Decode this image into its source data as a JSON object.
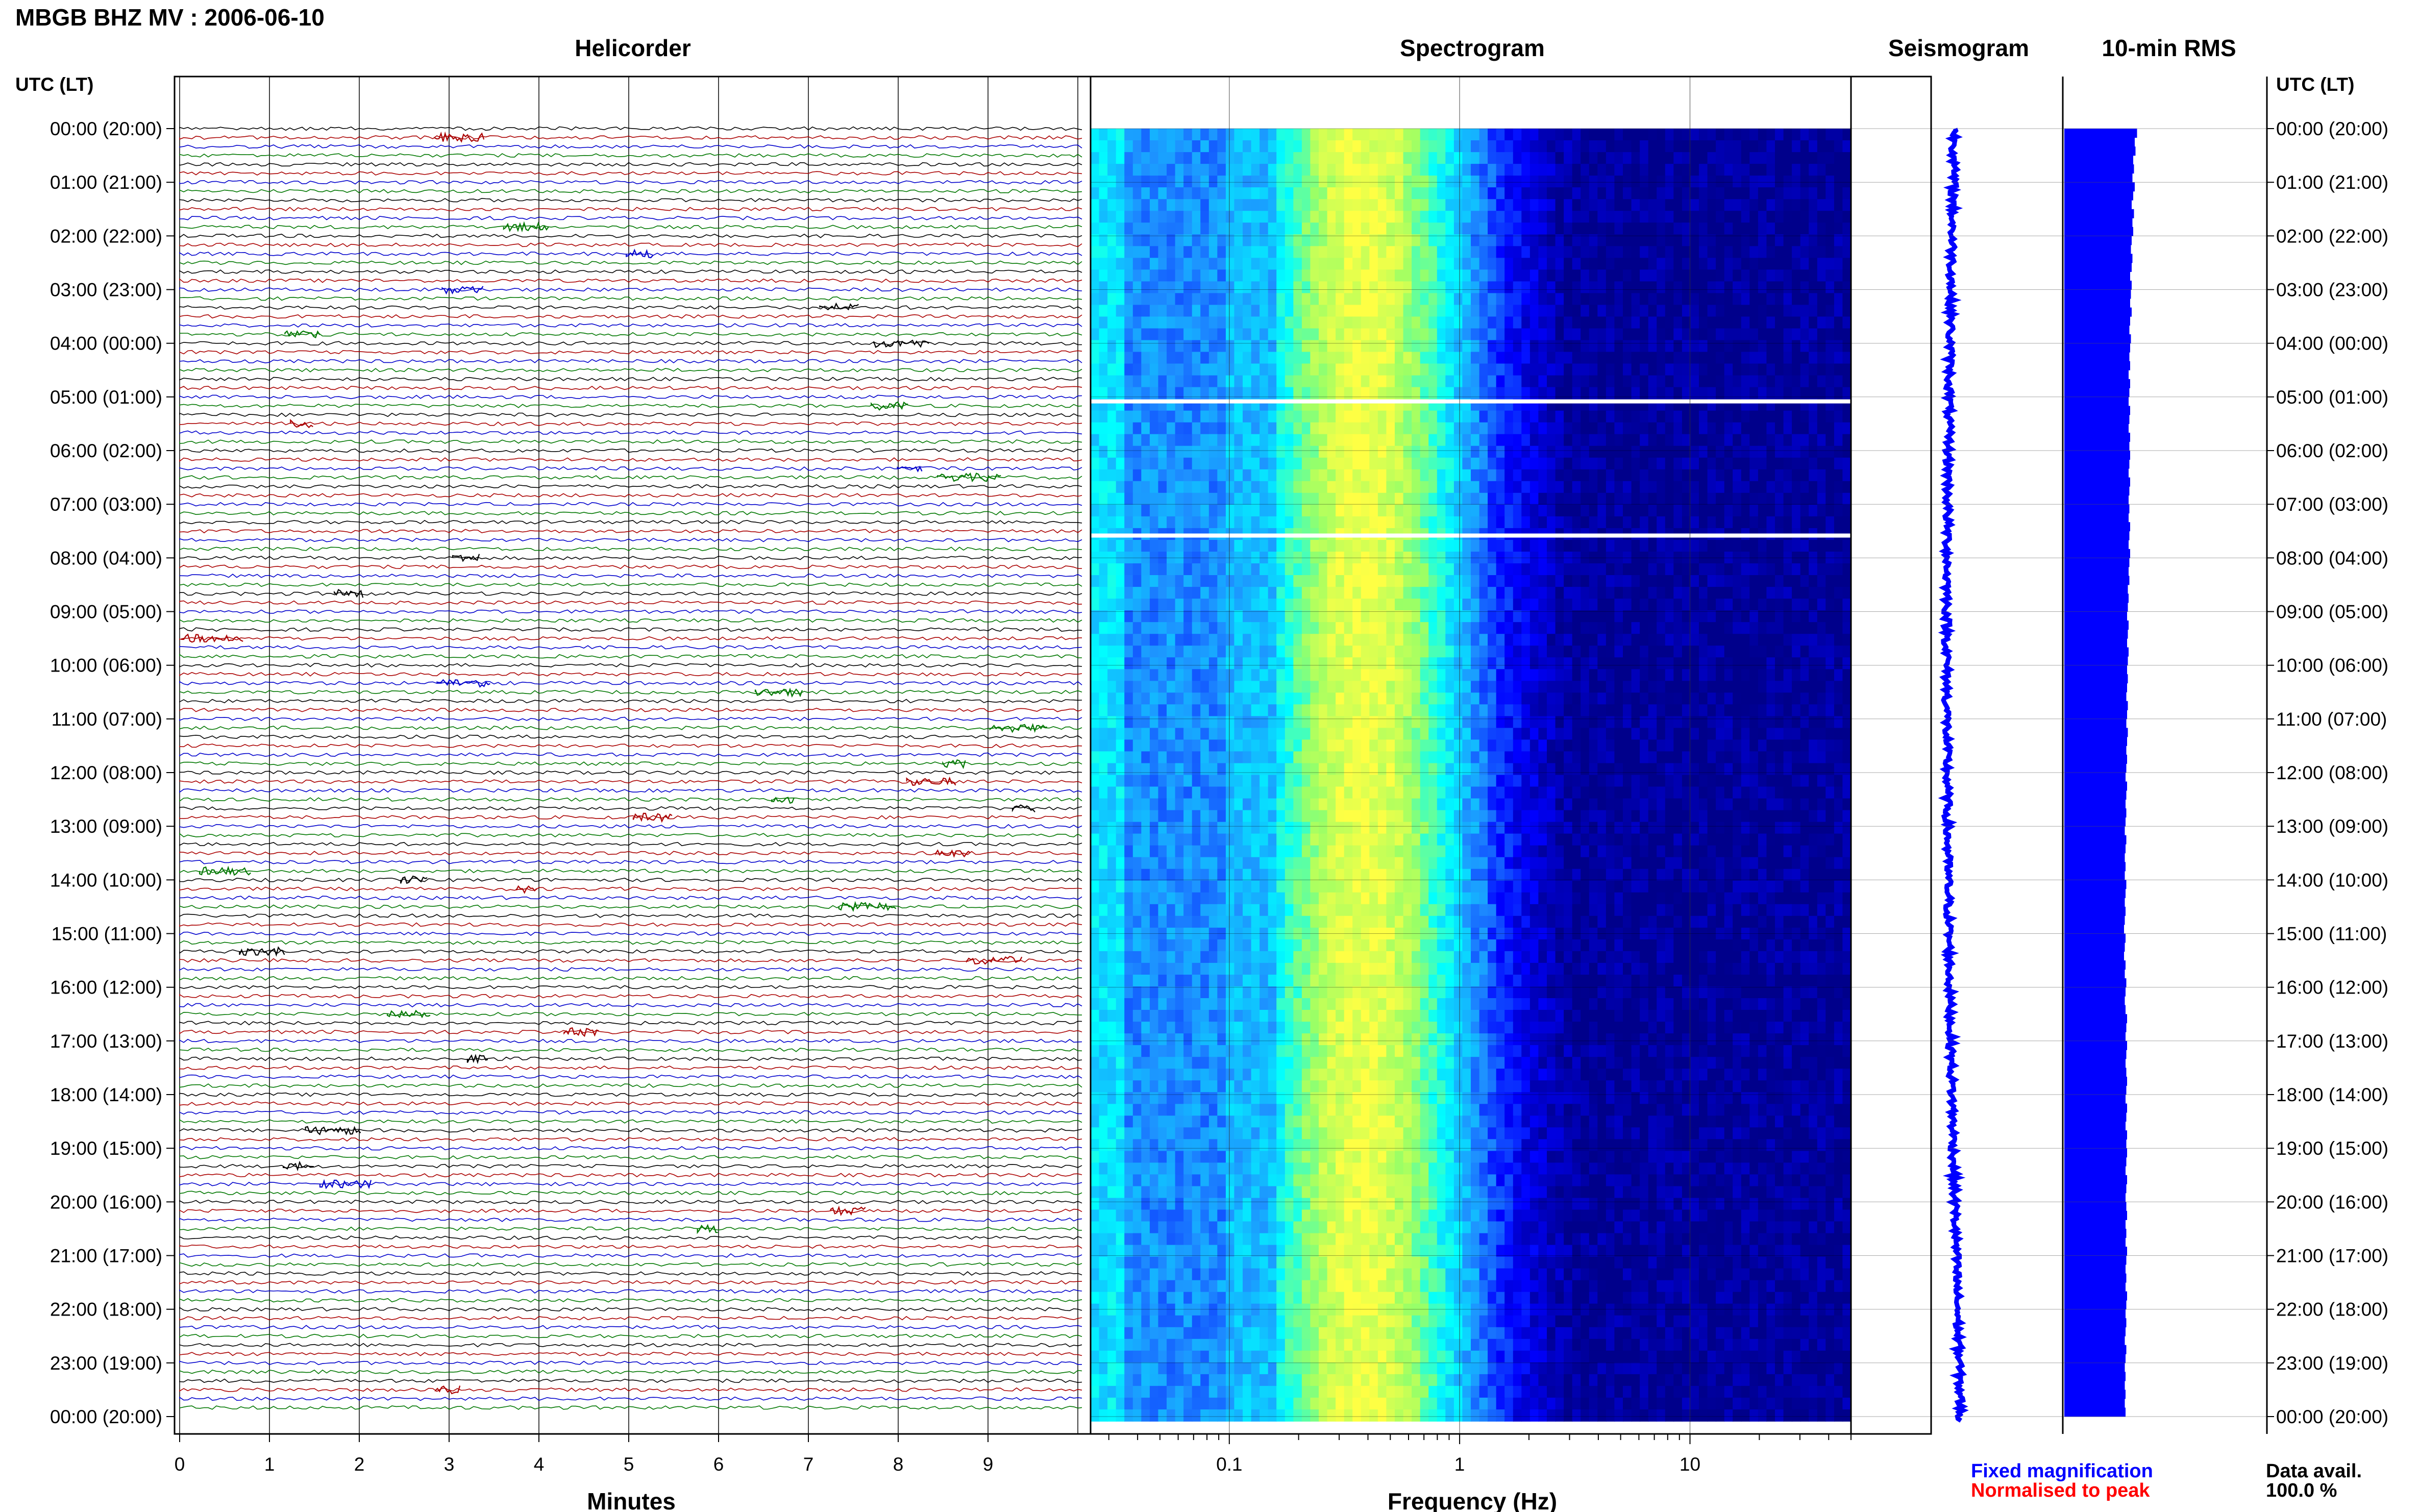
{
  "header": {
    "title": "MBGB BHZ MV : 2006-06-10"
  },
  "panels": {
    "helicorder": "Helicorder",
    "spectrogram": "Spectrogram",
    "seismogram": "Seismogram",
    "rms": "10-min RMS"
  },
  "axes": {
    "time_heading_left": "UTC (LT)",
    "time_heading_right": "UTC (LT)",
    "minutes_label": "Minutes",
    "frequency_label": "Frequency (Hz)"
  },
  "legend": {
    "fixed": "Fixed magnification",
    "normalised": "Normalised to peak",
    "fixed_color": "#0000ff",
    "normalised_color": "#ff0000"
  },
  "data_availability": {
    "label": "Data avail.",
    "value": "100.0 %"
  },
  "colors": {
    "trace_cycle": [
      "#000000",
      "#aa0000",
      "#0000cc",
      "#007700"
    ],
    "seismogram": "#0000ff",
    "rms_fill": "#0000ff",
    "spectrogram_palette": [
      "#00008b",
      "#0000ff",
      "#1e90ff",
      "#00ffff",
      "#9aff66",
      "#ffff44"
    ]
  },
  "chart_data": [
    {
      "type": "line",
      "panel": "helicorder",
      "title": "Helicorder",
      "xlabel": "Minutes",
      "xlim": [
        0,
        10
      ],
      "x_ticks": [
        "0",
        "1",
        "2",
        "3",
        "4",
        "5",
        "6",
        "7",
        "8",
        "9"
      ],
      "y_ticks": [
        "00:00 (20:00)",
        "01:00 (21:00)",
        "02:00 (22:00)",
        "03:00 (23:00)",
        "04:00 (00:00)",
        "05:00 (01:00)",
        "06:00 (02:00)",
        "07:00 (03:00)",
        "08:00 (04:00)",
        "09:00 (05:00)",
        "10:00 (06:00)",
        "11:00 (07:00)",
        "12:00 (08:00)",
        "13:00 (09:00)",
        "14:00 (10:00)",
        "15:00 (11:00)",
        "16:00 (12:00)",
        "17:00 (13:00)",
        "18:00 (14:00)",
        "19:00 (15:00)",
        "20:00 (16:00)",
        "21:00 (17:00)",
        "22:00 (18:00)",
        "23:00 (19:00)",
        "00:00 (20:00)"
      ],
      "traces_per_hour": 6,
      "total_traces": 144,
      "grid": true
    },
    {
      "type": "heatmap",
      "panel": "spectrogram",
      "title": "Spectrogram",
      "xlabel": "Frequency (Hz)",
      "x_scale": "log",
      "xlim": [
        0.025,
        50
      ],
      "x_ticks": [
        "0.1",
        "1",
        "10"
      ],
      "grid": true,
      "data_gaps_utc": [
        "05:05",
        "07:35"
      ]
    },
    {
      "type": "line",
      "panel": "seismogram",
      "title": "Seismogram",
      "note": "trace drifts left toward ~17:00 UTC and recovers"
    },
    {
      "type": "bar",
      "panel": "rms",
      "title": "10-min RMS",
      "orientation": "horizontal",
      "n_bars": 144,
      "relative_values": [
        0.95,
        0.92,
        0.93,
        0.9,
        0.91,
        0.89,
        0.92,
        0.9,
        0.88,
        0.91,
        0.89,
        0.9,
        0.88,
        0.87,
        0.89,
        0.88,
        0.86,
        0.88,
        0.87,
        0.86,
        0.88,
        0.86,
        0.85,
        0.87,
        0.86,
        0.85,
        0.86,
        0.84,
        0.86,
        0.85,
        0.84,
        0.86,
        0.85,
        0.84,
        0.86,
        0.85,
        0.86,
        0.85,
        0.84,
        0.86,
        0.85,
        0.84,
        0.85,
        0.84,
        0.86,
        0.85,
        0.84,
        0.86,
        0.85,
        0.84,
        0.85,
        0.83,
        0.84,
        0.83,
        0.82,
        0.84,
        0.83,
        0.82,
        0.84,
        0.83,
        0.82,
        0.83,
        0.82,
        0.81,
        0.83,
        0.82,
        0.81,
        0.83,
        0.82,
        0.81,
        0.82,
        0.81,
        0.8,
        0.82,
        0.81,
        0.8,
        0.81,
        0.8,
        0.79,
        0.81,
        0.8,
        0.79,
        0.8,
        0.79,
        0.81,
        0.8,
        0.79,
        0.8,
        0.79,
        0.78,
        0.8,
        0.79,
        0.78,
        0.8,
        0.79,
        0.81,
        0.8,
        0.79,
        0.8,
        0.82,
        0.81,
        0.8,
        0.82,
        0.81,
        0.8,
        0.81,
        0.82,
        0.81,
        0.8,
        0.82,
        0.81,
        0.8,
        0.82,
        0.81,
        0.82,
        0.81,
        0.8,
        0.82,
        0.81,
        0.8,
        0.81,
        0.82,
        0.8,
        0.81,
        0.8,
        0.82,
        0.81,
        0.8,
        0.81,
        0.8,
        0.82,
        0.81,
        0.8,
        0.81,
        0.8,
        0.79,
        0.81,
        0.8,
        0.79,
        0.8,
        0.79,
        0.8,
        0.79,
        0.8
      ]
    }
  ]
}
